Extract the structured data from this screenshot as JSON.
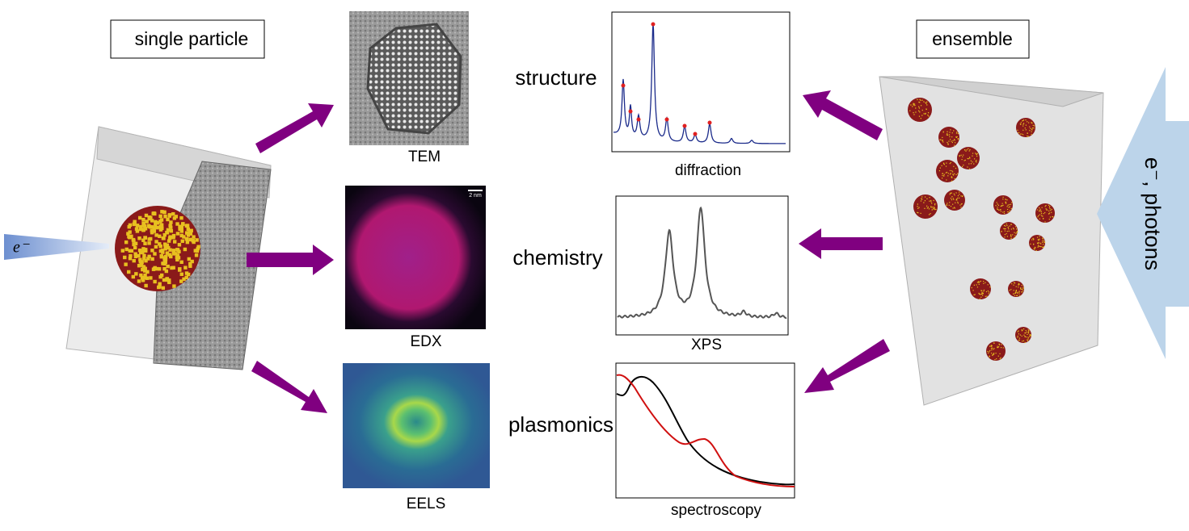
{
  "labels": {
    "single_particle": "single particle",
    "ensemble": "ensemble"
  },
  "properties": [
    "structure",
    "chemistry",
    "plasmonics"
  ],
  "images": [
    {
      "caption": "TEM"
    },
    {
      "caption": "EDX",
      "scale_bar": "2 nm"
    },
    {
      "caption": "EELS"
    }
  ],
  "plots": [
    {
      "caption": "diffraction"
    },
    {
      "caption": "XPS"
    },
    {
      "caption": "spectroscopy"
    }
  ],
  "beams": {
    "electron": "e⁻",
    "source": "e⁻, photons"
  }
}
